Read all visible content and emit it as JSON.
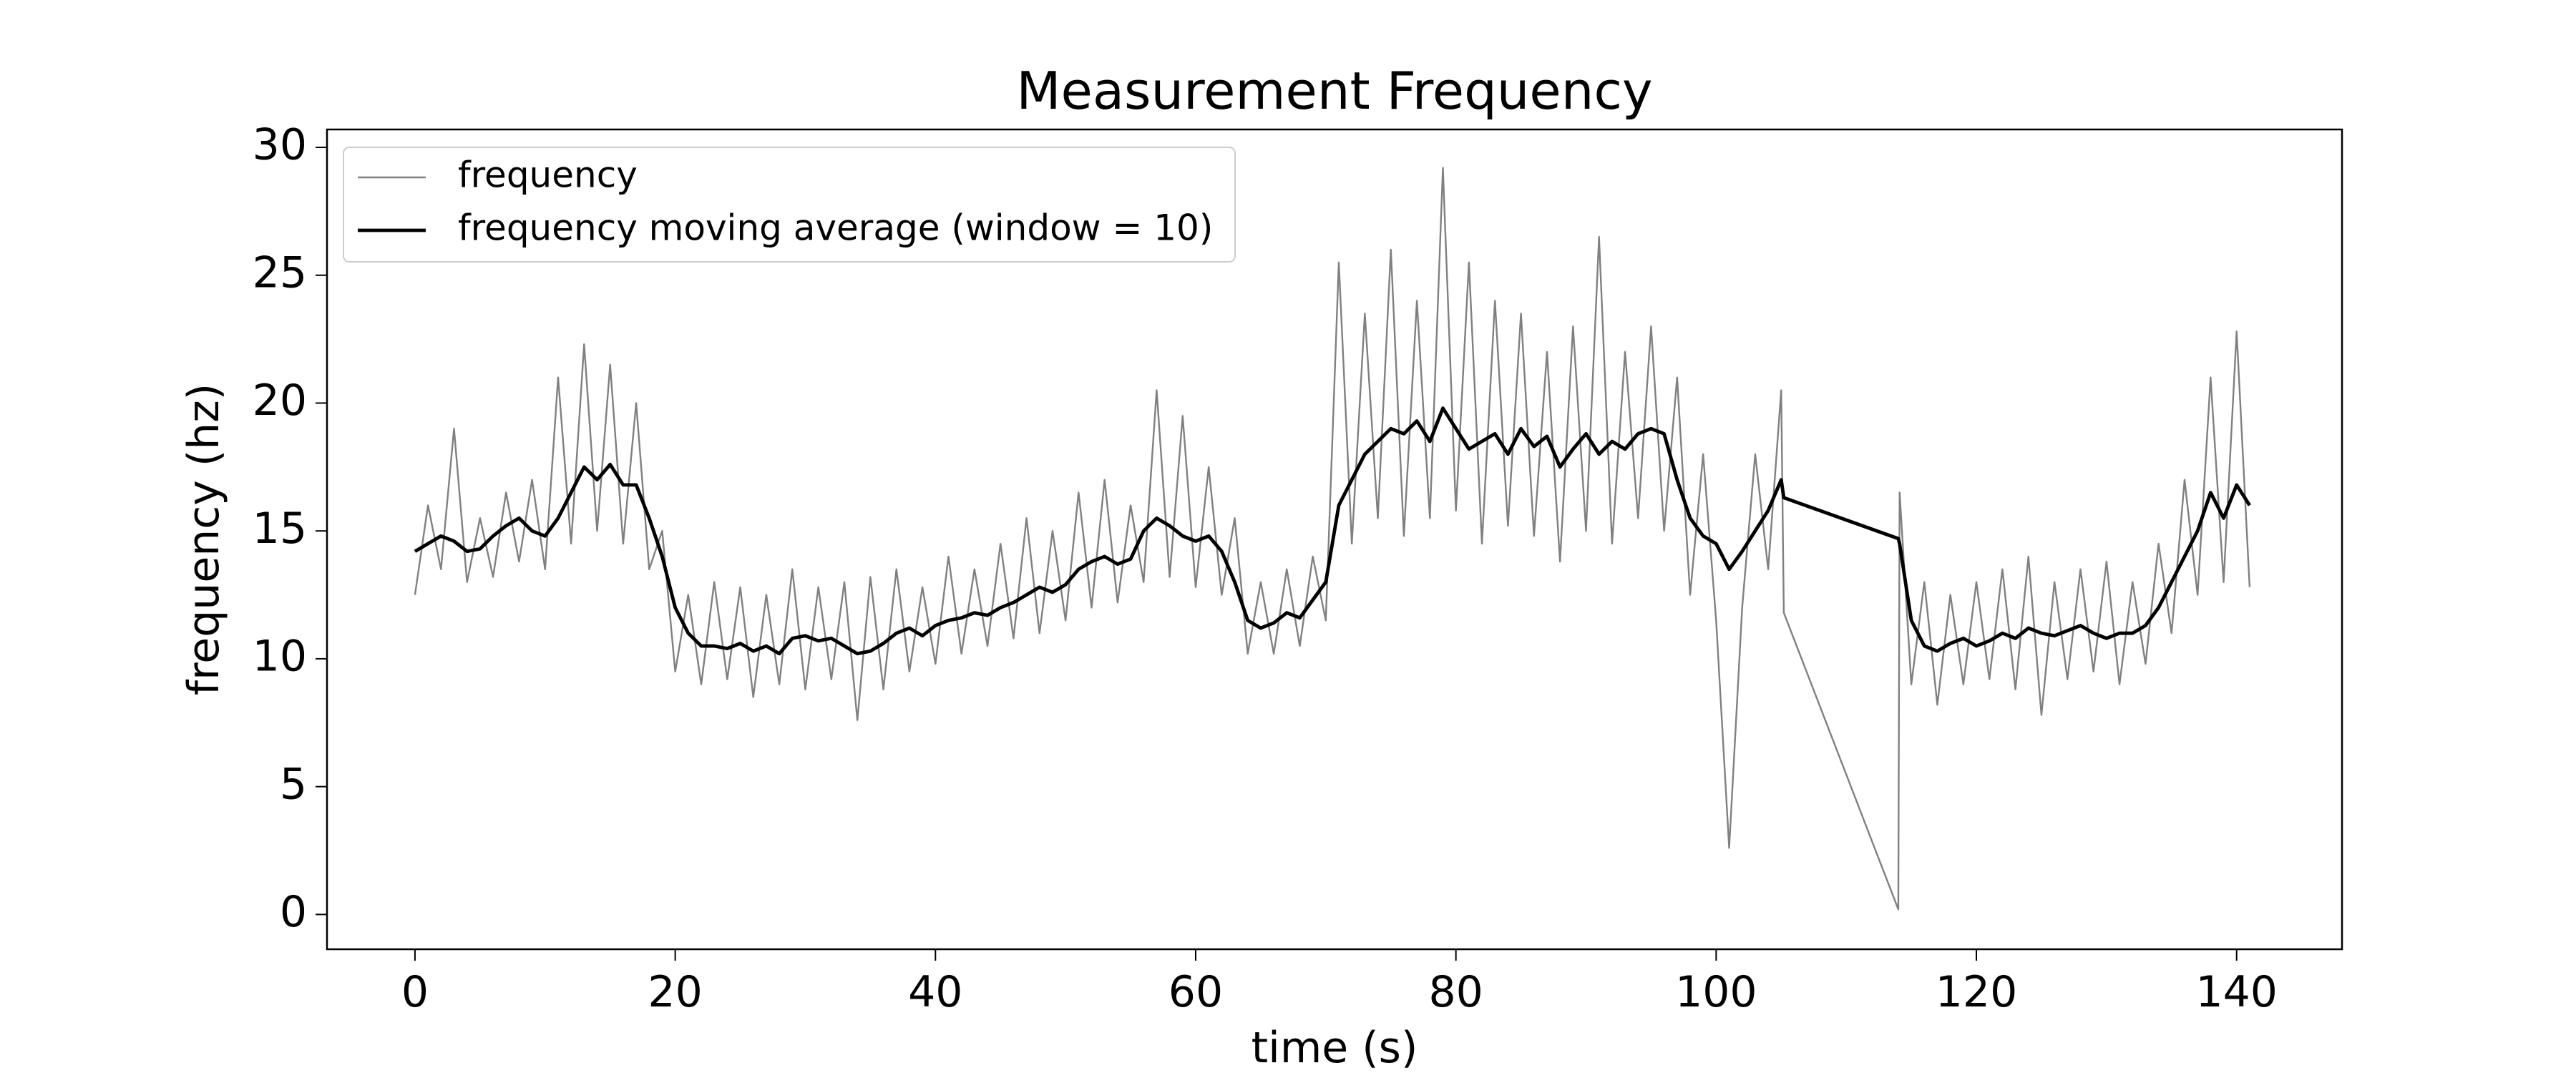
{
  "chart_data": {
    "type": "line",
    "title": "Measurement Frequency",
    "x_label": "time (s)",
    "y_label": "frequency (hz)",
    "x": [
      0,
      1,
      2,
      3,
      4,
      5,
      6,
      7,
      8,
      9,
      10,
      11,
      12,
      13,
      14,
      15,
      16,
      17,
      18,
      19,
      20,
      21,
      22,
      23,
      24,
      25,
      26,
      27,
      28,
      29,
      30,
      31,
      32,
      33,
      34,
      35,
      36,
      37,
      38,
      39,
      40,
      41,
      42,
      43,
      44,
      45,
      46,
      47,
      48,
      49,
      50,
      51,
      52,
      53,
      54,
      55,
      56,
      57,
      58,
      59,
      60,
      61,
      62,
      63,
      64,
      65,
      66,
      67,
      68,
      69,
      70,
      71,
      72,
      73,
      74,
      75,
      76,
      77,
      78,
      79,
      80,
      81,
      82,
      83,
      84,
      85,
      86,
      87,
      88,
      89,
      90,
      91,
      92,
      93,
      94,
      95,
      96,
      97,
      98,
      99,
      100,
      101,
      102,
      103,
      104,
      105,
      105.2,
      114,
      114.1,
      115,
      116,
      117,
      118,
      119,
      120,
      121,
      122,
      123,
      124,
      125,
      126,
      127,
      128,
      129,
      130,
      131,
      132,
      133,
      134,
      135,
      136,
      137,
      138,
      139,
      140,
      141
    ],
    "series": [
      {
        "name": "frequency",
        "color": "#808080",
        "width": 1,
        "values": [
          12.5,
          16,
          13.5,
          19,
          13,
          15.5,
          13.2,
          16.5,
          13.8,
          17,
          13.5,
          21,
          14.5,
          22.3,
          15,
          21.5,
          14.5,
          20,
          13.5,
          15,
          9.5,
          12.5,
          9,
          13,
          9.2,
          12.8,
          8.5,
          12.5,
          9,
          13.5,
          8.8,
          12.8,
          9.2,
          13,
          7.6,
          13.2,
          8.8,
          13.5,
          9.5,
          12.8,
          9.8,
          14,
          10.2,
          13.5,
          10.5,
          14.5,
          10.8,
          15.5,
          11,
          15,
          11.5,
          16.5,
          12,
          17,
          12.2,
          16,
          13,
          20.5,
          13.2,
          19.5,
          12.8,
          17.5,
          12.5,
          15.5,
          10.2,
          13,
          10.2,
          13.5,
          10.5,
          14,
          11.5,
          25.5,
          14.5,
          23.5,
          15.5,
          26,
          14.8,
          24,
          15.5,
          29.2,
          15.8,
          25.5,
          14.5,
          24,
          15.2,
          23.5,
          14.8,
          22,
          13.8,
          23,
          15,
          26.5,
          14.5,
          22,
          15.5,
          23,
          15,
          21,
          12.5,
          18,
          11.5,
          2.6,
          12,
          18,
          13.5,
          20.5,
          11.8,
          0.2,
          16.5,
          9,
          13,
          8.2,
          12.5,
          9,
          13,
          9.2,
          13.5,
          8.8,
          14,
          7.8,
          13,
          9.2,
          13.5,
          9.5,
          13.8,
          9,
          13,
          9.8,
          14.5,
          11,
          17,
          12.5,
          21,
          13,
          22.8,
          12.8
        ]
      },
      {
        "name": "frequency moving average (window = 10)",
        "color": "#000000",
        "width": 2,
        "values": [
          14.2,
          14.5,
          14.8,
          14.6,
          14.2,
          14.3,
          14.8,
          15.2,
          15.5,
          15,
          14.8,
          15.5,
          16.5,
          17.5,
          17,
          17.6,
          16.8,
          16.8,
          15.5,
          14,
          12,
          11,
          10.5,
          10.5,
          10.4,
          10.6,
          10.3,
          10.5,
          10.2,
          10.8,
          10.9,
          10.7,
          10.8,
          10.5,
          10.2,
          10.3,
          10.6,
          11,
          11.2,
          10.9,
          11.3,
          11.5,
          11.6,
          11.8,
          11.7,
          12,
          12.2,
          12.5,
          12.8,
          12.6,
          12.9,
          13.5,
          13.8,
          14,
          13.7,
          13.9,
          15,
          15.5,
          15.2,
          14.8,
          14.6,
          14.8,
          14.2,
          13,
          11.5,
          11.2,
          11.4,
          11.8,
          11.6,
          12.3,
          13,
          16,
          17,
          18,
          18.5,
          19,
          18.8,
          19.3,
          18.5,
          19.8,
          19,
          18.2,
          18.5,
          18.8,
          18,
          19,
          18.3,
          18.7,
          17.5,
          18.2,
          18.8,
          18,
          18.5,
          18.2,
          18.8,
          19,
          18.8,
          17,
          15.5,
          14.8,
          14.5,
          13.5,
          14.2,
          15,
          15.8,
          17,
          16.3,
          14.7,
          14.5,
          11.5,
          10.5,
          10.3,
          10.6,
          10.8,
          10.5,
          10.7,
          11,
          10.8,
          11.2,
          11,
          10.9,
          11.1,
          11.3,
          11,
          10.8,
          11,
          11,
          11.3,
          12,
          13,
          14,
          15,
          16.5,
          15.5,
          16.8,
          16
        ]
      }
    ],
    "xlim": [
      -6.76,
      148.1
    ],
    "ylim": [
      -1.36,
      30.7
    ],
    "xticks": [
      0,
      20,
      40,
      60,
      80,
      100,
      120,
      140
    ],
    "yticks": [
      0,
      5,
      10,
      15,
      20,
      25,
      30
    ],
    "grid": false,
    "legend": "upper left"
  }
}
